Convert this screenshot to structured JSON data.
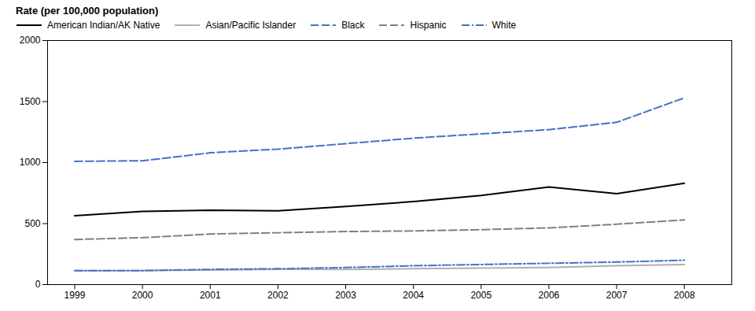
{
  "chart_data": {
    "type": "line",
    "y_label": "Rate (per 100,000 population)",
    "x": [
      1999,
      2000,
      2001,
      2002,
      2003,
      2004,
      2005,
      2006,
      2007,
      2008
    ],
    "series": [
      {
        "name": "American Indian/AK Native",
        "color": "#000000",
        "line_style": "solid",
        "values": [
          565,
          600,
          610,
          605,
          640,
          680,
          730,
          800,
          745,
          830
        ]
      },
      {
        "name": "Asian/Pacific Islander",
        "color": "#b0b0b0",
        "line_style": "solid",
        "values": [
          115,
          115,
          120,
          125,
          125,
          130,
          135,
          140,
          155,
          165
        ]
      },
      {
        "name": "Black",
        "color": "#4472c4",
        "line_style": "dashed",
        "values": [
          1010,
          1015,
          1080,
          1110,
          1155,
          1200,
          1235,
          1270,
          1330,
          1530
        ]
      },
      {
        "name": "Hispanic",
        "color": "#808080",
        "line_style": "dashed",
        "values": [
          370,
          385,
          415,
          425,
          435,
          440,
          450,
          465,
          495,
          530
        ]
      },
      {
        "name": "White",
        "color": "#4472c4",
        "line_style": "dashdot",
        "values": [
          115,
          115,
          125,
          130,
          140,
          155,
          165,
          175,
          185,
          200
        ]
      }
    ],
    "xlim": [
      1998.6,
      2008.7
    ],
    "xticks": [
      1999,
      2000,
      2001,
      2002,
      2003,
      2004,
      2005,
      2006,
      2007,
      2008
    ],
    "ylim": [
      0,
      2000
    ],
    "yticks": [
      0,
      500,
      1000,
      1500,
      2000
    ],
    "grid": false,
    "legend": "upper left"
  }
}
